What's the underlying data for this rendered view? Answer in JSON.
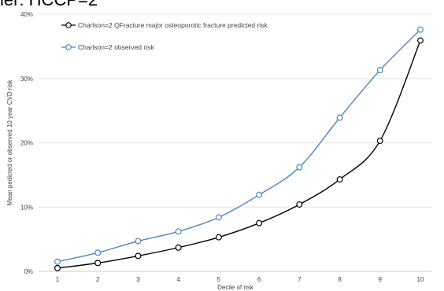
{
  "page_title_partial": "ier: HCCP=2",
  "chart_data": {
    "type": "line",
    "title": "",
    "xlabel": "Decile of risk",
    "ylabel": "Mean pedicted or observed 10 year CVD risk",
    "x": [
      1,
      2,
      3,
      4,
      5,
      6,
      7,
      8,
      9,
      10
    ],
    "xlim": [
      1,
      10
    ],
    "ylim": [
      0,
      40
    ],
    "y_ticks": [
      0,
      10,
      20,
      30,
      40
    ],
    "y_tick_format": "percent",
    "grid": {
      "horizontal": true,
      "vertical": false
    },
    "legend_position": "top-left",
    "series": [
      {
        "name": "Charlson=2 QFracture major osteoporotic fracture predicted risk",
        "color": "#000000",
        "marker": "open-circle",
        "values": [
          0.5,
          1.3,
          2.4,
          3.7,
          5.3,
          7.5,
          10.4,
          14.3,
          20.3,
          35.9
        ]
      },
      {
        "name": "Charlson=2 observed risk",
        "color": "#4a86c5",
        "marker": "open-circle",
        "values": [
          1.5,
          2.9,
          4.7,
          6.2,
          8.4,
          11.9,
          16.2,
          23.9,
          31.3,
          37.6
        ]
      }
    ]
  }
}
